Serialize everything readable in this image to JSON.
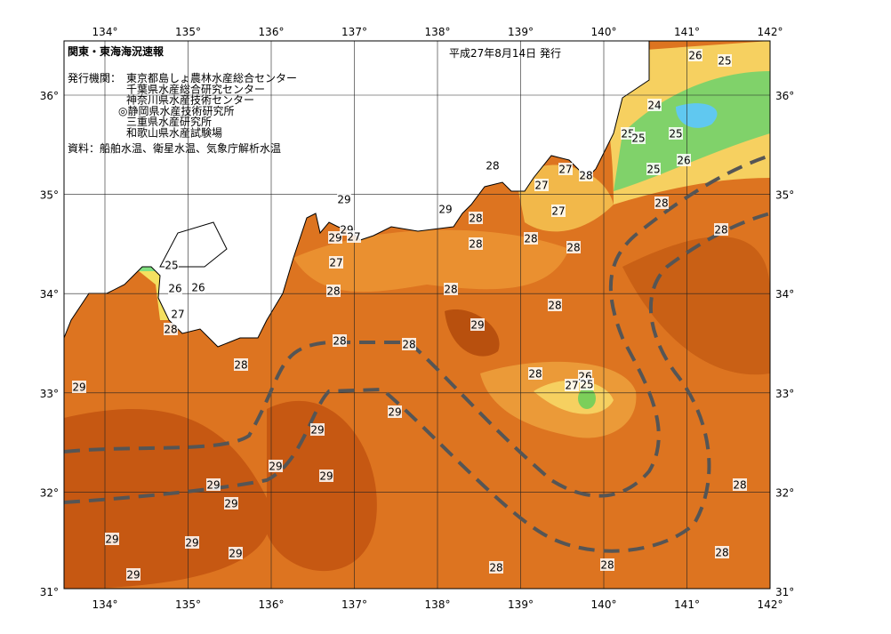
{
  "header": {
    "title": "関東・東海海況速報",
    "date": "平成27年8月14日 発行",
    "issuer_label": "発行機関：",
    "issuers": [
      "東京都島しょ農林水産総合センター",
      "千葉県水産総合研究センター",
      "神奈川県水産技術センター",
      "◎静岡県水産技術研究所",
      "三重県水産研究所",
      "和歌山県水産試験場"
    ],
    "source": "資料：船舶水温、衛星水温、気象庁解析水温"
  },
  "map": {
    "lon_labels": [
      "134°",
      "135°",
      "136°",
      "137°",
      "138°",
      "139°",
      "140°",
      "141°",
      "142°"
    ],
    "lat_labels": [
      "36°",
      "35°",
      "34°",
      "33°",
      "32°",
      "31°"
    ],
    "contour_labels": [
      26,
      25,
      24,
      25,
      25,
      25,
      26,
      25,
      28,
      27,
      27,
      28,
      29,
      29,
      28,
      27,
      29,
      29,
      27,
      28,
      28,
      28,
      28,
      28,
      25,
      27,
      26,
      26,
      28,
      28,
      27,
      28,
      28,
      29,
      28,
      28,
      28,
      29,
      28,
      26,
      25,
      27,
      29,
      29,
      29,
      29,
      29,
      29,
      28,
      29,
      29,
      29,
      28,
      28,
      28,
      29
    ]
  }
}
